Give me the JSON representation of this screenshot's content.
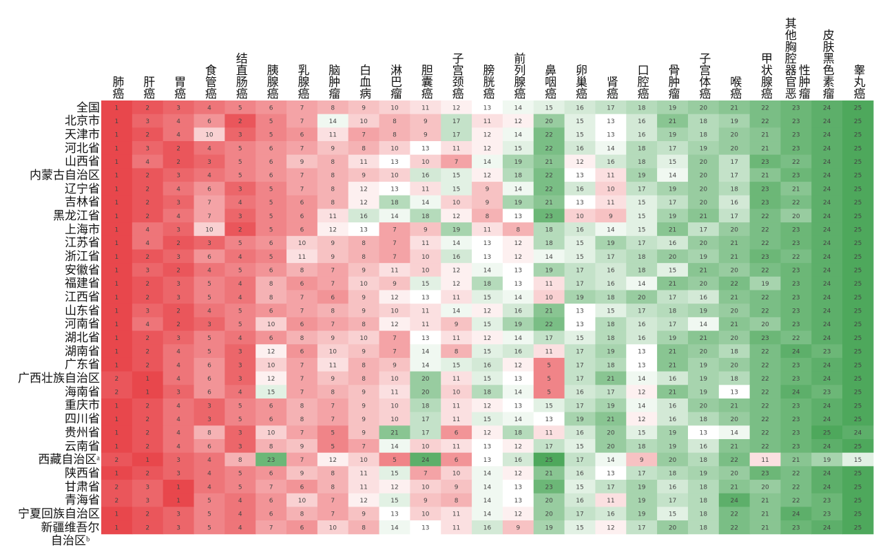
{
  "table": {
    "columns": [
      "肺癌",
      "肝癌",
      "胃癌",
      "食管癌",
      "结直肠癌",
      "胰腺癌",
      "乳腺癌",
      "脑肿瘤",
      "白血病",
      "淋巴瘤",
      "胆囊癌",
      "子宫颈癌",
      "膀胱癌",
      "前列腺癌",
      "鼻咽癌",
      "卵巢癌",
      "肾癌",
      "口腔癌",
      "骨肿瘤",
      "子宫体癌",
      "喉癌",
      "甲状腺癌",
      "其他胸腔器官恶性肿瘤",
      "皮肤黑色素瘤",
      "睾丸癌"
    ],
    "rows": [
      {
        "label": "全国",
        "values": [
          1,
          2,
          3,
          4,
          5,
          6,
          7,
          8,
          9,
          10,
          11,
          12,
          13,
          14,
          15,
          16,
          17,
          18,
          19,
          20,
          21,
          22,
          23,
          24,
          25
        ]
      },
      {
        "label": "北京市",
        "values": [
          1,
          3,
          4,
          6,
          2,
          5,
          7,
          14,
          10,
          8,
          9,
          17,
          11,
          12,
          20,
          15,
          13,
          16,
          21,
          18,
          19,
          22,
          23,
          24,
          25
        ]
      },
      {
        "label": "天津市",
        "values": [
          1,
          2,
          4,
          10,
          3,
          5,
          6,
          11,
          7,
          8,
          9,
          17,
          12,
          14,
          22,
          15,
          13,
          16,
          19,
          18,
          20,
          21,
          23,
          24,
          25
        ]
      },
      {
        "label": "河北省",
        "values": [
          1,
          3,
          2,
          4,
          5,
          6,
          7,
          9,
          8,
          10,
          13,
          11,
          12,
          15,
          22,
          16,
          14,
          18,
          17,
          19,
          20,
          21,
          23,
          24,
          25
        ]
      },
      {
        "label": "山西省",
        "values": [
          1,
          4,
          2,
          3,
          5,
          6,
          9,
          8,
          11,
          13,
          10,
          7,
          14,
          19,
          21,
          12,
          16,
          18,
          15,
          20,
          17,
          23,
          22,
          24,
          25
        ]
      },
      {
        "label": "内蒙古自治区",
        "values": [
          1,
          2,
          3,
          4,
          5,
          6,
          7,
          8,
          9,
          10,
          16,
          15,
          12,
          18,
          22,
          13,
          11,
          19,
          14,
          20,
          17,
          21,
          23,
          24,
          25
        ]
      },
      {
        "label": "辽宁省",
        "values": [
          1,
          2,
          4,
          6,
          3,
          5,
          7,
          8,
          12,
          13,
          11,
          15,
          9,
          14,
          22,
          16,
          10,
          17,
          19,
          20,
          18,
          23,
          21,
          24,
          25
        ]
      },
      {
        "label": "吉林省",
        "values": [
          1,
          2,
          3,
          7,
          4,
          5,
          6,
          8,
          12,
          18,
          14,
          10,
          9,
          19,
          21,
          13,
          11,
          15,
          17,
          20,
          16,
          23,
          22,
          24,
          25
        ]
      },
      {
        "label": "黑龙江省",
        "values": [
          1,
          2,
          4,
          7,
          3,
          5,
          6,
          11,
          16,
          14,
          18,
          12,
          8,
          13,
          23,
          10,
          9,
          15,
          19,
          21,
          17,
          22,
          20,
          24,
          25
        ]
      },
      {
        "label": "上海市",
        "values": [
          1,
          4,
          3,
          10,
          2,
          5,
          6,
          12,
          13,
          7,
          9,
          19,
          11,
          8,
          18,
          16,
          14,
          15,
          21,
          17,
          20,
          22,
          23,
          24,
          25
        ]
      },
      {
        "label": "江苏省",
        "values": [
          1,
          4,
          2,
          3,
          5,
          6,
          10,
          9,
          8,
          7,
          11,
          14,
          13,
          12,
          18,
          15,
          19,
          17,
          16,
          20,
          21,
          22,
          23,
          24,
          25
        ]
      },
      {
        "label": "浙江省",
        "values": [
          1,
          2,
          3,
          6,
          4,
          5,
          11,
          9,
          8,
          7,
          10,
          16,
          13,
          12,
          14,
          15,
          17,
          18,
          20,
          19,
          21,
          23,
          22,
          24,
          25
        ]
      },
      {
        "label": "安徽省",
        "values": [
          1,
          3,
          2,
          4,
          5,
          6,
          8,
          7,
          9,
          11,
          10,
          12,
          14,
          13,
          19,
          17,
          16,
          18,
          15,
          21,
          20,
          22,
          23,
          24,
          25
        ]
      },
      {
        "label": "福建省",
        "values": [
          1,
          2,
          3,
          5,
          4,
          8,
          6,
          7,
          10,
          9,
          15,
          12,
          18,
          13,
          11,
          17,
          16,
          14,
          21,
          20,
          22,
          19,
          23,
          24,
          25
        ]
      },
      {
        "label": "江西省",
        "values": [
          1,
          2,
          3,
          5,
          4,
          8,
          7,
          6,
          9,
          12,
          13,
          11,
          15,
          14,
          10,
          19,
          18,
          20,
          17,
          16,
          21,
          22,
          23,
          24,
          25
        ]
      },
      {
        "label": "山东省",
        "values": [
          1,
          3,
          2,
          4,
          5,
          6,
          7,
          8,
          9,
          10,
          11,
          14,
          12,
          16,
          21,
          13,
          15,
          17,
          18,
          19,
          20,
          22,
          23,
          24,
          25
        ]
      },
      {
        "label": "河南省",
        "values": [
          1,
          4,
          2,
          3,
          5,
          10,
          6,
          7,
          8,
          12,
          11,
          9,
          15,
          19,
          22,
          13,
          18,
          16,
          17,
          14,
          21,
          20,
          23,
          24,
          25
        ]
      },
      {
        "label": "湖北省",
        "values": [
          1,
          2,
          3,
          5,
          4,
          6,
          8,
          9,
          10,
          7,
          13,
          11,
          12,
          14,
          17,
          15,
          18,
          16,
          19,
          21,
          20,
          23,
          22,
          24,
          25
        ]
      },
      {
        "label": "湖南省",
        "values": [
          1,
          2,
          4,
          5,
          3,
          12,
          6,
          10,
          9,
          7,
          14,
          8,
          15,
          16,
          11,
          17,
          19,
          13,
          21,
          20,
          18,
          22,
          24,
          23,
          25
        ]
      },
      {
        "label": "广东省",
        "values": [
          1,
          2,
          4,
          6,
          3,
          10,
          7,
          11,
          8,
          9,
          14,
          15,
          16,
          12,
          5,
          17,
          18,
          13,
          21,
          19,
          20,
          22,
          23,
          24,
          25
        ]
      },
      {
        "label": "广西壮族自治区",
        "values": [
          2,
          1,
          4,
          6,
          3,
          12,
          7,
          9,
          8,
          10,
          20,
          11,
          15,
          13,
          5,
          17,
          21,
          14,
          16,
          19,
          18,
          22,
          23,
          24,
          25
        ]
      },
      {
        "label": "海南省",
        "values": [
          2,
          1,
          3,
          6,
          4,
          15,
          7,
          8,
          9,
          11,
          20,
          10,
          18,
          14,
          5,
          16,
          17,
          12,
          21,
          19,
          13,
          22,
          24,
          23,
          25
        ]
      },
      {
        "label": "重庆市",
        "values": [
          1,
          2,
          4,
          3,
          5,
          6,
          8,
          7,
          9,
          10,
          18,
          11,
          12,
          13,
          15,
          17,
          19,
          14,
          16,
          20,
          21,
          22,
          23,
          24,
          25
        ]
      },
      {
        "label": "四川省",
        "values": [
          1,
          2,
          4,
          3,
          5,
          6,
          8,
          7,
          9,
          10,
          17,
          11,
          15,
          14,
          13,
          19,
          21,
          12,
          16,
          18,
          20,
          22,
          23,
          24,
          25
        ]
      },
      {
        "label": "贵州省",
        "values": [
          1,
          2,
          4,
          8,
          3,
          10,
          7,
          5,
          9,
          21,
          17,
          6,
          12,
          18,
          11,
          16,
          20,
          15,
          19,
          13,
          14,
          22,
          23,
          25,
          24
        ]
      },
      {
        "label": "云南省",
        "values": [
          1,
          2,
          4,
          6,
          3,
          8,
          9,
          5,
          7,
          14,
          10,
          11,
          13,
          12,
          17,
          15,
          20,
          18,
          19,
          16,
          21,
          22,
          23,
          24,
          25
        ]
      },
      {
        "label": "西藏自治区ᵃ",
        "values": [
          2,
          1,
          3,
          4,
          8,
          23,
          7,
          12,
          10,
          5,
          24,
          6,
          13,
          16,
          25,
          17,
          14,
          9,
          20,
          18,
          22,
          11,
          21,
          19,
          15
        ]
      },
      {
        "label": "陕西省",
        "values": [
          1,
          2,
          3,
          4,
          5,
          6,
          9,
          8,
          11,
          15,
          7,
          10,
          14,
          12,
          21,
          16,
          13,
          17,
          18,
          19,
          20,
          23,
          22,
          24,
          25
        ]
      },
      {
        "label": "甘肃省",
        "values": [
          2,
          3,
          1,
          4,
          5,
          7,
          6,
          8,
          11,
          12,
          10,
          9,
          14,
          13,
          23,
          15,
          17,
          19,
          16,
          18,
          21,
          20,
          22,
          24,
          25
        ]
      },
      {
        "label": "青海省",
        "values": [
          2,
          3,
          1,
          5,
          4,
          6,
          10,
          7,
          12,
          15,
          9,
          8,
          14,
          13,
          20,
          16,
          11,
          19,
          17,
          18,
          24,
          21,
          22,
          23,
          25
        ]
      },
      {
        "label": "宁夏回族自治区",
        "values": [
          1,
          2,
          3,
          5,
          4,
          6,
          8,
          7,
          9,
          13,
          10,
          11,
          14,
          12,
          20,
          17,
          16,
          19,
          15,
          18,
          22,
          21,
          24,
          23,
          25
        ]
      },
      {
        "label": "新疆维吾尔自治区ᵇ",
        "values": [
          1,
          2,
          3,
          5,
          4,
          7,
          6,
          10,
          8,
          14,
          13,
          11,
          16,
          9,
          19,
          15,
          12,
          17,
          20,
          18,
          22,
          21,
          23,
          24,
          25
        ]
      }
    ]
  },
  "color_scale": {
    "low": "#e8474c",
    "mid": "#ffffff",
    "high": "#4ea85c"
  }
}
